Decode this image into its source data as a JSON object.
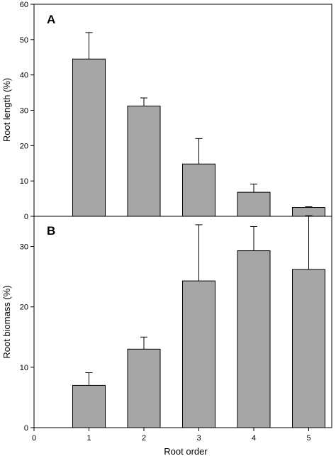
{
  "chart_data": [
    {
      "type": "bar",
      "panel_label": "A",
      "categories": [
        "1",
        "2",
        "3",
        "4",
        "5"
      ],
      "values": [
        44.5,
        31.2,
        14.8,
        6.8,
        2.5
      ],
      "error_upper": [
        7.5,
        2.3,
        7.2,
        2.3,
        0.2
      ],
      "xlabel": "",
      "ylabel": "Root length (%)",
      "ylim": [
        0,
        60
      ],
      "yticks": [
        0,
        10,
        20,
        30,
        40,
        50,
        60
      ],
      "bar_color": "#a6a6a6",
      "grid": false
    },
    {
      "type": "bar",
      "panel_label": "B",
      "categories": [
        "1",
        "2",
        "3",
        "4",
        "5"
      ],
      "values": [
        7.0,
        13.0,
        24.3,
        29.3,
        26.2
      ],
      "error_upper": [
        2.1,
        2.0,
        9.3,
        4.0,
        8.9
      ],
      "xlabel": "Root order",
      "ylabel": "Root biomass (%)",
      "ylim": [
        0,
        35
      ],
      "yticks": [
        0,
        10,
        20,
        30
      ],
      "xticks": [
        "0",
        "1",
        "2",
        "3",
        "4",
        "5"
      ],
      "bar_color": "#a6a6a6",
      "grid": false
    }
  ]
}
